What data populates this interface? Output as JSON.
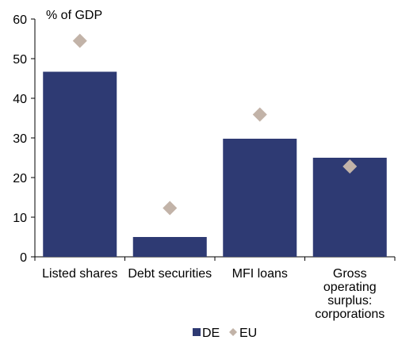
{
  "chart_data": {
    "type": "bar",
    "unit_label": "% of GDP",
    "categories": [
      [
        "Listed shares"
      ],
      [
        "Debt securities"
      ],
      [
        "MFI loans"
      ],
      [
        "Gross",
        "operating",
        "surplus:",
        "corporations"
      ]
    ],
    "series": [
      {
        "name": "DE",
        "mark": "bar",
        "color": "#2e3a73",
        "values": [
          46.7,
          5.0,
          29.8,
          25.0
        ]
      },
      {
        "name": "EU",
        "mark": "diamond",
        "color": "#c2b3a8",
        "values": [
          54.5,
          12.3,
          35.9,
          22.8
        ]
      }
    ],
    "ylim": [
      0,
      60
    ],
    "yticks": [
      0,
      10,
      20,
      30,
      40,
      50,
      60
    ],
    "grid": false,
    "legend_position": "bottom-center"
  }
}
